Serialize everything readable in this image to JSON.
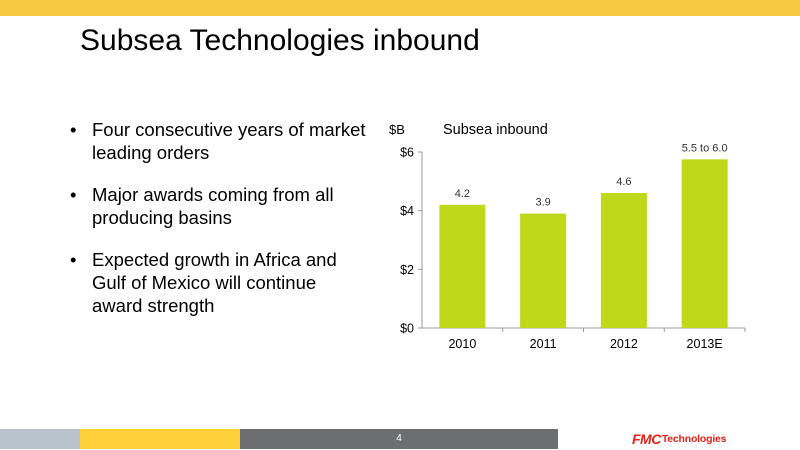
{
  "slide": {
    "title": "Subsea Technologies inbound",
    "page_number": "4"
  },
  "bullets": [
    "Four consecutive years of market leading orders",
    "Major awards coming from all producing basins",
    "Expected growth in Africa and Gulf of Mexico will continue award strength"
  ],
  "logo": {
    "mark": "FMC",
    "word": "Technologies",
    "color": "#e2231a"
  },
  "colors": {
    "top_bar": "#f7c943",
    "bar_fill": "#bfd81a",
    "footer_gray_light": "#b8c2cc",
    "footer_yellow": "#fdd03a",
    "footer_gray_dark": "#6d6e71"
  },
  "chart_data": {
    "type": "bar",
    "title": "Subsea inbound",
    "ylabel": "$B",
    "categories": [
      "2010",
      "2011",
      "2012",
      "2013E"
    ],
    "values": [
      4.2,
      3.9,
      4.6,
      5.75
    ],
    "data_labels": [
      "4.2",
      "3.9",
      "4.6",
      "5.5 to 6.0"
    ],
    "ylim": [
      0,
      6
    ],
    "yticks": [
      0,
      2,
      4,
      6
    ],
    "ytick_labels": [
      "$0",
      "$2",
      "$4",
      "$6"
    ],
    "grid": false,
    "legend": "none"
  }
}
